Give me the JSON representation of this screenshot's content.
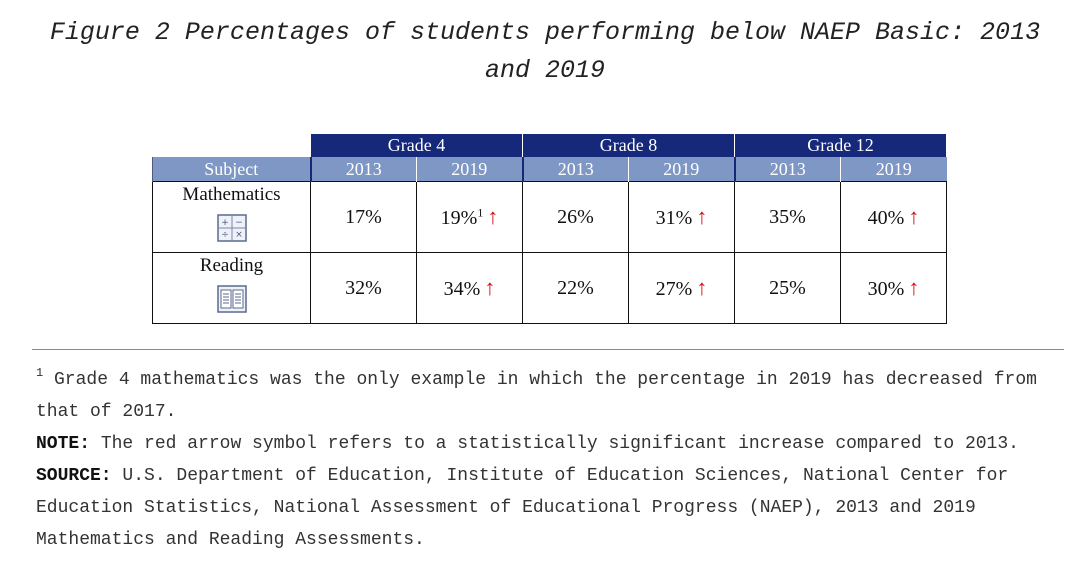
{
  "title": "Figure 2 Percentages of students performing below NAEP Basic: 2013 and 2019",
  "table": {
    "grades": [
      "Grade 4",
      "Grade 8",
      "Grade 12"
    ],
    "subject_header": "Subject",
    "years": [
      "2013",
      "2019",
      "2013",
      "2019",
      "2013",
      "2019"
    ],
    "rows": [
      {
        "subject": "Mathematics",
        "icon": "calculator-icon",
        "values": [
          "17%",
          "19%",
          "26%",
          "31%",
          "35%",
          "40%"
        ]
      },
      {
        "subject": "Reading",
        "icon": "book-icon",
        "values": [
          "32%",
          "34%",
          "22%",
          "27%",
          "25%",
          "30%"
        ]
      }
    ],
    "footnote_marker": "1",
    "arrow_symbol": "↑",
    "arrow_color": "#d31016",
    "header_color": "#15287a",
    "subheader_color": "#7f97c5"
  },
  "notes": {
    "footnote_marker": "1",
    "footnote_text": " Grade 4 mathematics was the only example in which the percentage in 2019 has decreased from that of 2017.",
    "note_label": "NOTE:",
    "note_text": " The red arrow symbol refers to a statistically significant increase compared to 2013.",
    "source_label": "SOURCE:",
    "source_text": " U.S. Department of Education, Institute of Education Sciences, National Center for Education Statistics, National Assessment of Educational Progress (NAEP), 2013 and 2019 Mathematics and Reading Assessments."
  }
}
